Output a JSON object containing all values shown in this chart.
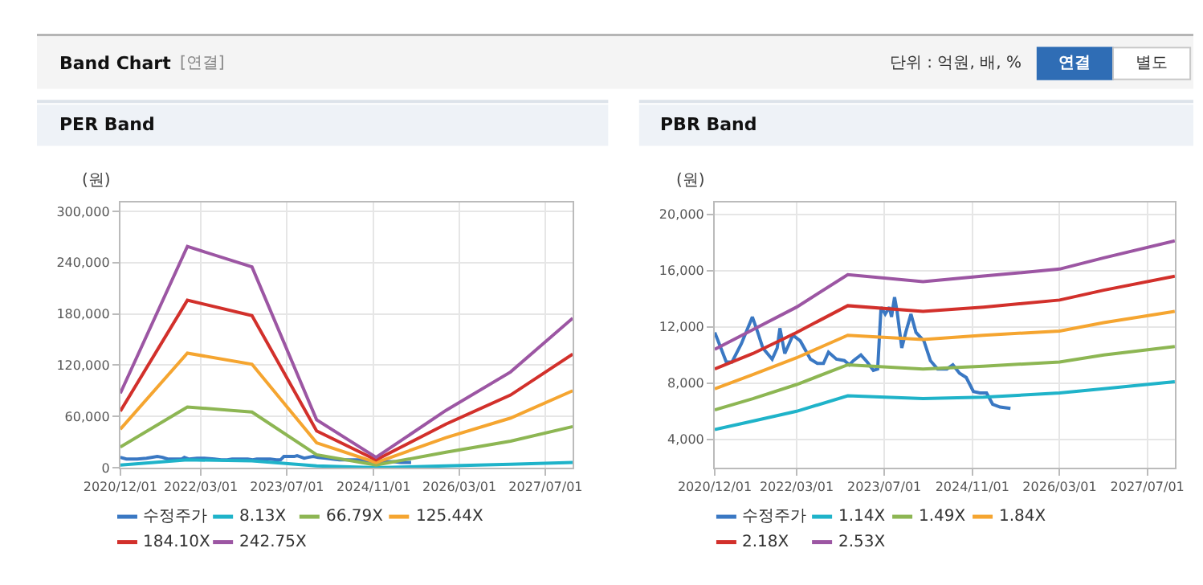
{
  "chart_data": [
    {
      "type": "other",
      "title": "Band Chart",
      "annotations": [
        "[연결]",
        "단위 : 억원, 배, %",
        "연결",
        "별도"
      ]
    },
    {
      "type": "line",
      "title": "PER Band",
      "ylabel": "(원)",
      "grid": true,
      "legend": "bottom",
      "marker": "none",
      "line_style": "solid",
      "x": [
        "2020-12-01",
        "2021-12-15",
        "2022-12-15",
        "2023-12-15",
        "2024-11-15",
        "2025-12-15",
        "2026-12-15",
        "2027-12-01"
      ],
      "xlim": [
        "2020-12-01",
        "2027-12-01"
      ],
      "xticks": [
        {
          "value": "2020-12-01",
          "label": "2020/12/01"
        },
        {
          "value": "2022-03-01",
          "label": "2022/03/01"
        },
        {
          "value": "2023-07-01",
          "label": "2023/07/01"
        },
        {
          "value": "2024-11-01",
          "label": "2024/11/01"
        },
        {
          "value": "2026-03-01",
          "label": "2026/03/01"
        },
        {
          "value": "2027-07-01",
          "label": "2027/07/01"
        }
      ],
      "ylim": [
        0,
        310000
      ],
      "yticks": [
        0,
        {
          "value": 60000,
          "label": "60,000"
        },
        {
          "value": 120000,
          "label": "120,000"
        },
        {
          "value": 180000,
          "label": "180,000"
        },
        {
          "value": 240000,
          "label": "240,000"
        },
        {
          "value": 300000,
          "label": "300,000"
        }
      ],
      "series": [
        {
          "name": "수정주가",
          "color": "#3a78c3",
          "x": [
            "2020-12-01",
            "2021-01-04",
            "2021-02-03",
            "2021-03-07",
            "2021-04-28",
            "2021-06-28",
            "2021-07-28",
            "2021-08-25",
            "2021-10-16",
            "2021-11-13",
            "2021-11-28",
            "2021-12-25",
            "2022-02-08",
            "2022-03-21",
            "2022-05-17",
            "2022-06-24",
            "2022-07-28",
            "2022-08-25",
            "2022-10-08",
            "2022-11-21",
            "2022-12-19",
            "2023-01-11",
            "2023-02-21",
            "2023-03-28",
            "2023-05-01",
            "2023-05-25",
            "2023-06-13",
            "2023-07-06",
            "2023-07-29",
            "2023-08-10",
            "2023-08-27",
            "2023-09-10",
            "2023-10-06",
            "2023-10-28",
            "2023-11-26",
            "2023-12-24",
            "2024-02-06",
            "2024-03-13",
            "2024-04-22",
            "2024-06-13",
            "2024-07-16",
            "2024-08-22",
            "2024-09-28",
            "2024-11-07",
            "2024-12-13",
            "2025-01-19",
            "2025-02-22",
            "2025-04-04",
            "2025-06-01"
          ],
          "values": [
            12000,
            10000,
            10000,
            10000,
            11000,
            13000,
            12000,
            10000,
            10000,
            10000,
            12000,
            10000,
            11000,
            11000,
            10000,
            9000,
            9000,
            10000,
            10000,
            10000,
            9000,
            10000,
            10000,
            10000,
            9000,
            9000,
            13000,
            13000,
            13000,
            13000,
            14000,
            13000,
            11000,
            12000,
            13000,
            12000,
            11000,
            10000,
            9000,
            9000,
            9000,
            9000,
            8000,
            7000,
            7000,
            7000,
            7000,
            6000,
            6000
          ]
        },
        {
          "name": "8.13X",
          "color": "#1fb3c9",
          "values": [
            3000,
            9000,
            8000,
            2000,
            0,
            2000,
            4000,
            6000
          ]
        },
        {
          "name": "66.79X",
          "color": "#8db653",
          "values": [
            24000,
            71000,
            65000,
            15000,
            3000,
            18000,
            31000,
            48000
          ]
        },
        {
          "name": "125.44X",
          "color": "#f5a530",
          "values": [
            45000,
            134000,
            121000,
            29000,
            6000,
            35000,
            58000,
            90000
          ]
        },
        {
          "name": "184.10X",
          "color": "#d2302b",
          "values": [
            66000,
            196000,
            178000,
            43000,
            9000,
            51000,
            85000,
            133000
          ]
        },
        {
          "name": "242.75X",
          "color": "#9c56a3",
          "values": [
            87000,
            259000,
            235000,
            56000,
            12000,
            67000,
            112000,
            175000
          ]
        }
      ]
    },
    {
      "type": "line",
      "title": "PBR Band",
      "ylabel": "(원)",
      "grid": true,
      "legend": "bottom",
      "marker": "none",
      "line_style": "solid",
      "x": [
        "2020-12-01",
        "2021-07-01",
        "2022-03-01",
        "2022-12-10",
        "2024-02-01",
        "2025-01-01",
        "2026-03-01",
        "2026-11-01",
        "2027-12-01"
      ],
      "xlim": [
        "2020-12-01",
        "2027-12-01"
      ],
      "xticks": [
        {
          "value": "2020-12-01",
          "label": "2020/12/01"
        },
        {
          "value": "2022-03-01",
          "label": "2022/03/01"
        },
        {
          "value": "2023-07-01",
          "label": "2023/07/01"
        },
        {
          "value": "2024-11-01",
          "label": "2024/11/01"
        },
        {
          "value": "2026-03-01",
          "label": "2026/03/01"
        },
        {
          "value": "2027-07-01",
          "label": "2027/07/01"
        }
      ],
      "ylim": [
        2000,
        20800
      ],
      "yticks": [
        {
          "value": 4000,
          "label": "4,000"
        },
        {
          "value": 8000,
          "label": "8,000"
        },
        {
          "value": 12000,
          "label": "12,000"
        },
        {
          "value": 16000,
          "label": "16,000"
        },
        {
          "value": 20000,
          "label": "20,000"
        }
      ],
      "series": [
        {
          "name": "수정주가",
          "color": "#3a78c3",
          "x": [
            "2020-12-01",
            "2021-01-04",
            "2021-02-03",
            "2021-03-07",
            "2021-04-28",
            "2021-06-28",
            "2021-07-28",
            "2021-08-25",
            "2021-10-16",
            "2021-11-13",
            "2021-11-28",
            "2021-12-25",
            "2022-02-08",
            "2022-03-21",
            "2022-05-17",
            "2022-06-24",
            "2022-07-28",
            "2022-08-25",
            "2022-10-08",
            "2022-11-21",
            "2022-12-19",
            "2023-01-11",
            "2023-02-21",
            "2023-03-28",
            "2023-05-01",
            "2023-05-25",
            "2023-06-13",
            "2023-07-06",
            "2023-07-29",
            "2023-08-10",
            "2023-08-27",
            "2023-09-10",
            "2023-10-06",
            "2023-10-28",
            "2023-11-26",
            "2023-12-24",
            "2024-02-06",
            "2024-03-13",
            "2024-04-22",
            "2024-06-13",
            "2024-07-16",
            "2024-08-22",
            "2024-09-28",
            "2024-11-07",
            "2024-12-13",
            "2025-01-19",
            "2025-02-22",
            "2025-04-04",
            "2025-06-01"
          ],
          "values": [
            11600,
            10500,
            9500,
            9500,
            10800,
            12700,
            11600,
            10500,
            9700,
            10500,
            11900,
            10100,
            11400,
            11000,
            9700,
            9400,
            9400,
            10200,
            9700,
            9600,
            9300,
            9600,
            10000,
            9500,
            8900,
            9000,
            13400,
            12900,
            13400,
            12700,
            14100,
            13100,
            10500,
            11600,
            12900,
            11600,
            11000,
            9600,
            9000,
            9000,
            9300,
            8700,
            8400,
            7400,
            7300,
            7300,
            6500,
            6300,
            6200
          ]
        },
        {
          "name": "1.14X",
          "color": "#1fb3c9",
          "values": [
            4700,
            5300,
            6000,
            7100,
            6900,
            7000,
            7300,
            7600,
            8100
          ]
        },
        {
          "name": "1.49X",
          "color": "#8db653",
          "values": [
            6100,
            6900,
            7900,
            9300,
            9000,
            9200,
            9500,
            10000,
            10600
          ]
        },
        {
          "name": "1.84X",
          "color": "#f5a530",
          "values": [
            7600,
            8600,
            9800,
            11400,
            11100,
            11400,
            11700,
            12300,
            13100
          ]
        },
        {
          "name": "2.18X",
          "color": "#d2302b",
          "values": [
            9000,
            10100,
            11600,
            13500,
            13100,
            13400,
            13900,
            14600,
            15600
          ]
        },
        {
          "name": "2.53X",
          "color": "#9c56a3",
          "values": [
            10400,
            11800,
            13400,
            15700,
            15200,
            15600,
            16100,
            16900,
            18100
          ]
        }
      ]
    }
  ]
}
